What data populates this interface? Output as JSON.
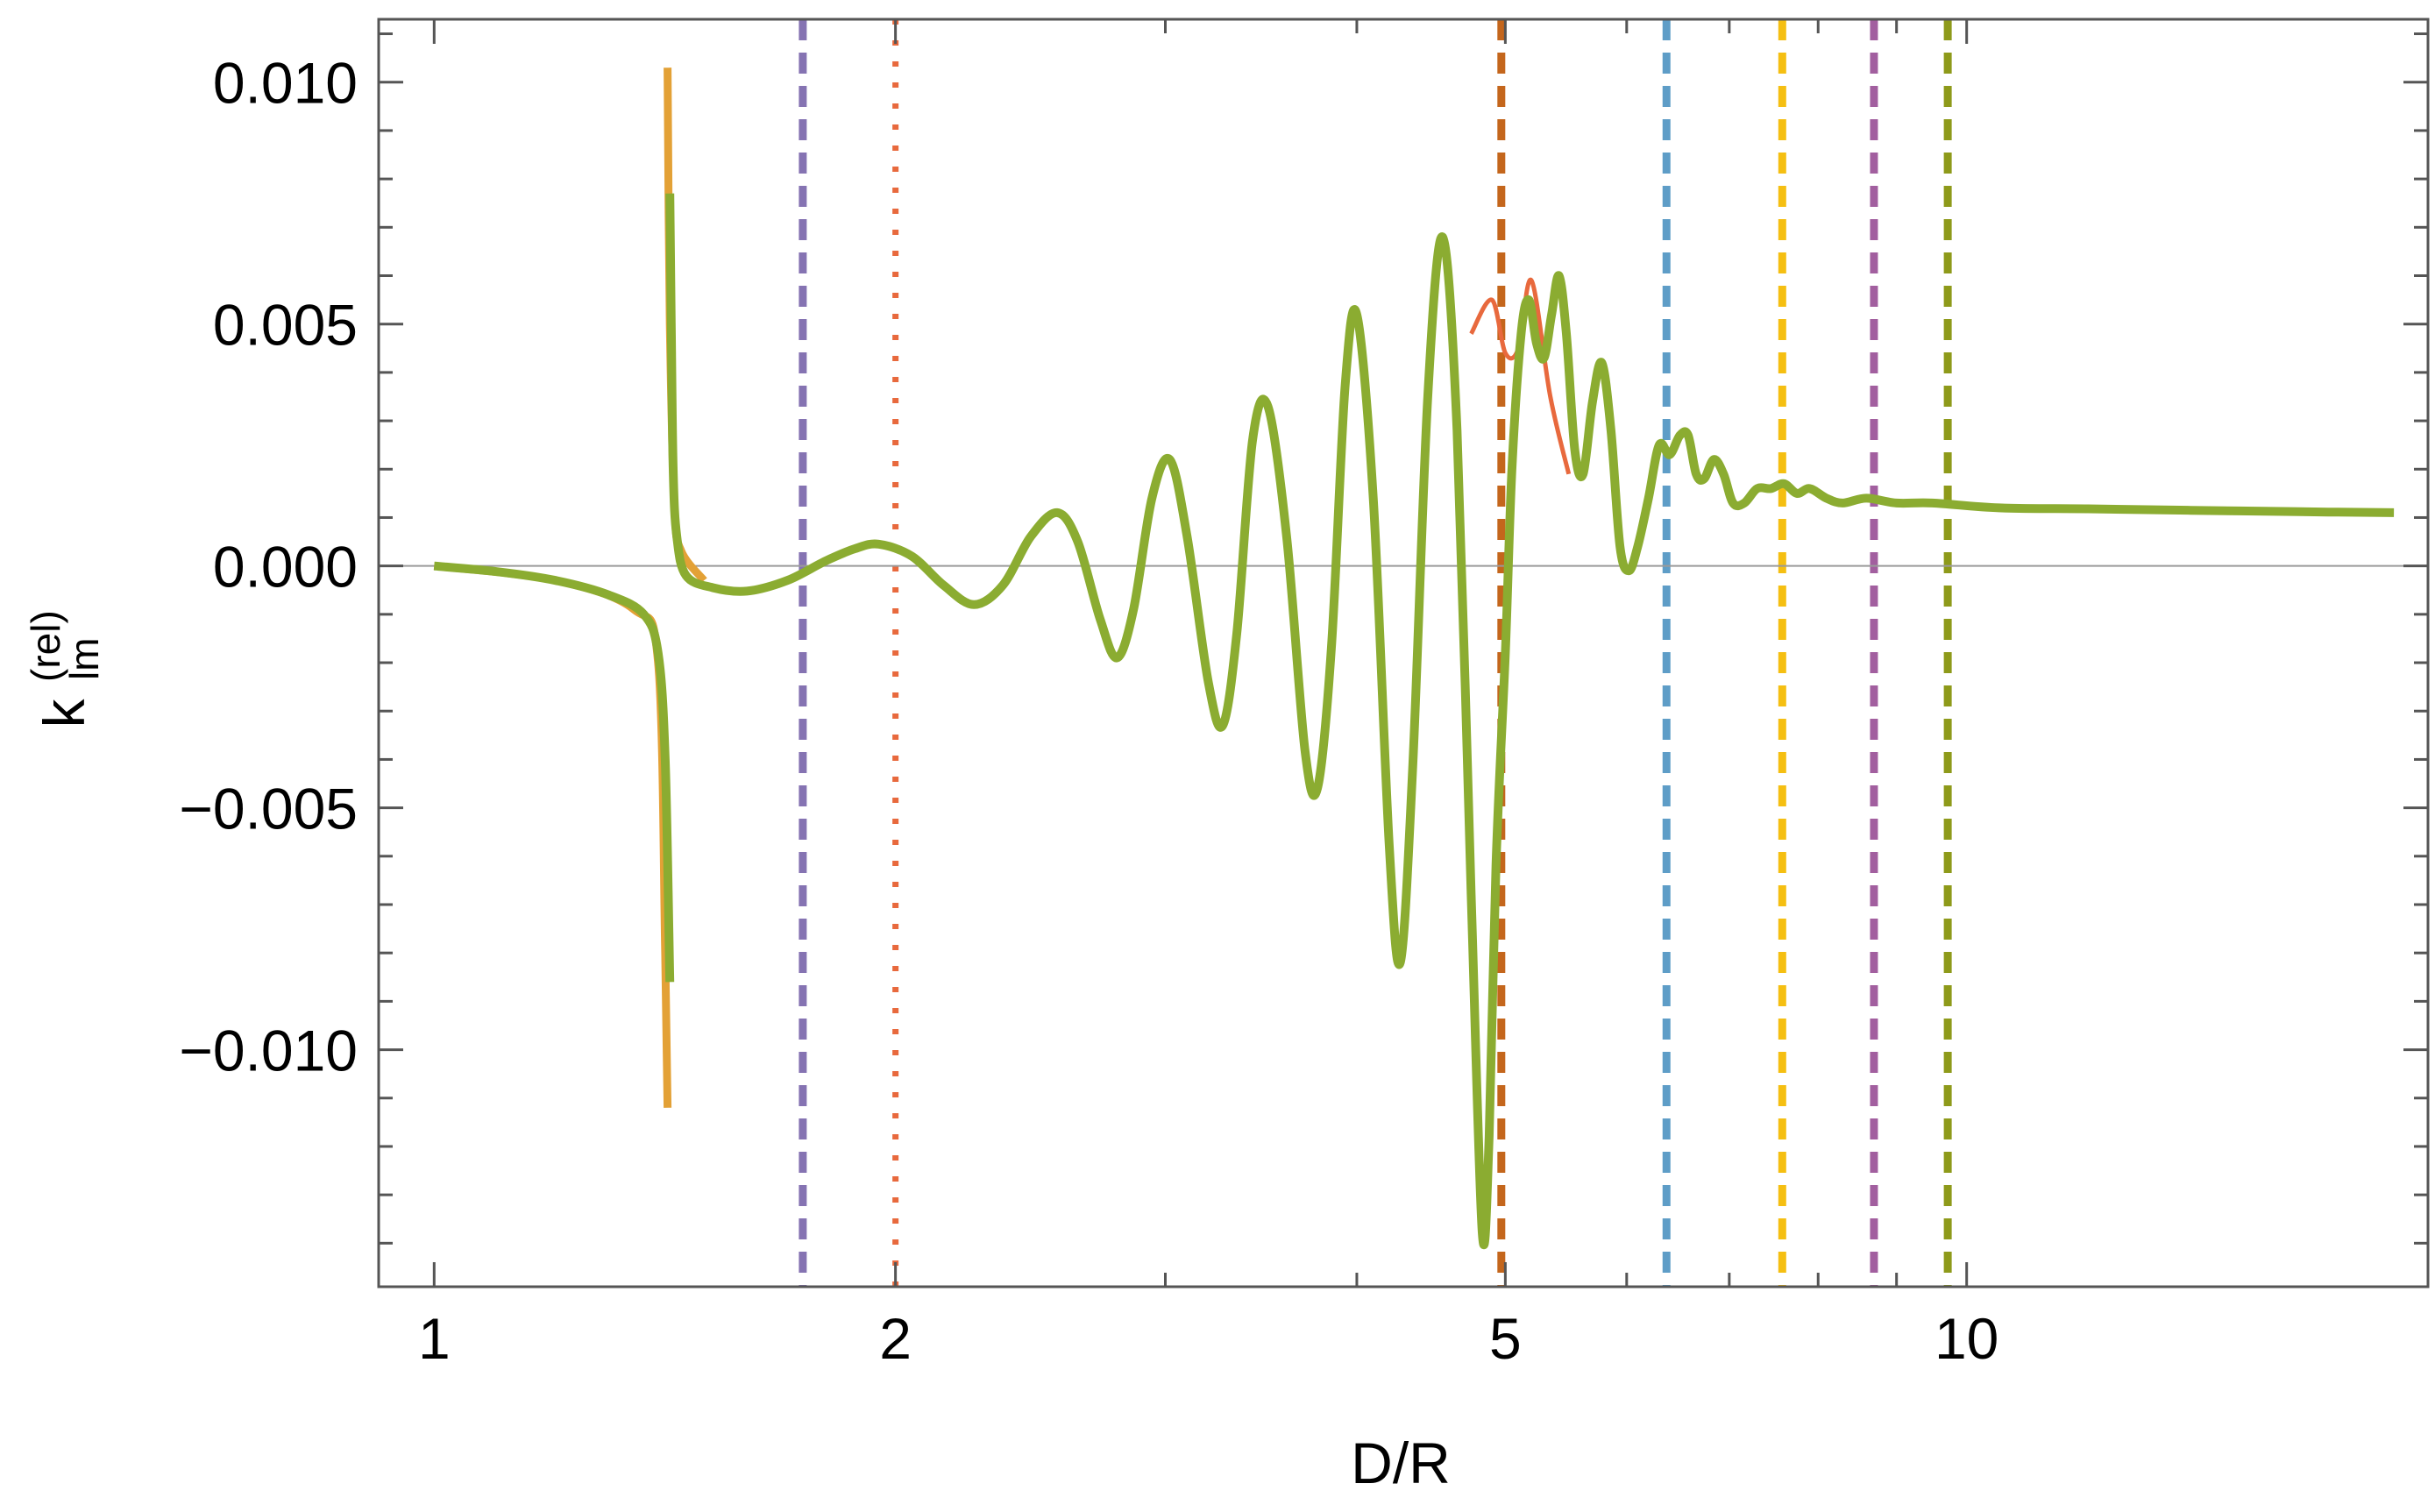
{
  "chart_data": {
    "type": "line",
    "xlabel": "D/R",
    "ylabel": {
      "base": "k",
      "superscript": "(rel)",
      "subscript": "lm"
    },
    "xscale": "log",
    "xlim": [
      0.92,
      20
    ],
    "ylim": [
      -0.0149,
      0.0113
    ],
    "x_ticks": [
      {
        "value": 1,
        "label": "1"
      },
      {
        "value": 2,
        "label": "2"
      },
      {
        "value": 5,
        "label": "5"
      },
      {
        "value": 10,
        "label": "10"
      }
    ],
    "y_ticks": [
      {
        "value": 0.01,
        "label": "0.010"
      },
      {
        "value": 0.005,
        "label": "0.005"
      },
      {
        "value": 0.0,
        "label": "0.000"
      },
      {
        "value": -0.005,
        "label": "−0.005"
      },
      {
        "value": -0.01,
        "label": "−0.010"
      }
    ],
    "grid": false,
    "zero_line": true,
    "vertical_lines": [
      {
        "x": 1.74,
        "style": "dashed",
        "color": "#8573b2"
      },
      {
        "x": 2.0,
        "style": "dotted",
        "color": "#e8693d"
      },
      {
        "x": 4.97,
        "style": "dashed",
        "color": "#c4661c"
      },
      {
        "x": 6.37,
        "style": "dashed",
        "color": "#5e9dc7"
      },
      {
        "x": 7.58,
        "style": "dashed",
        "color": "#f5bf12"
      },
      {
        "x": 8.7,
        "style": "dashed",
        "color": "#a25f9f"
      },
      {
        "x": 9.72,
        "style": "dashed",
        "color": "#8e9a1a"
      }
    ],
    "series": [
      {
        "color": "#e3a136",
        "width": 9,
        "segments": [
          [
            [
              1.0,
              0.0
            ],
            [
              1.2,
              -0.0003
            ],
            [
              1.35,
              -0.0009
            ],
            [
              1.4,
              -0.002
            ],
            [
              1.415,
              -0.008
            ],
            [
              1.42,
              -0.0112
            ]
          ],
          [
            [
              1.42,
              0.0103
            ],
            [
              1.425,
              0.005
            ],
            [
              1.435,
              0.0012
            ],
            [
              1.45,
              0.0003
            ],
            [
              1.5,
              -0.0003
            ]
          ]
        ]
      },
      {
        "color": "#e8693d",
        "width": 5,
        "segments": [
          [
            [
              4.75,
              0.0048
            ],
            [
              4.9,
              0.0055
            ],
            [
              5.0,
              0.0044
            ],
            [
              5.1,
              0.0045
            ],
            [
              5.2,
              0.0059
            ],
            [
              5.35,
              0.0035
            ],
            [
              5.5,
              0.0019
            ]
          ]
        ]
      },
      {
        "color": "#8bac31",
        "width": 10,
        "segments": [
          [
            [
              1.0,
              0.0
            ],
            [
              1.1,
              -0.00012
            ],
            [
              1.2,
              -0.0003
            ],
            [
              1.3,
              -0.0006
            ],
            [
              1.37,
              -0.001
            ],
            [
              1.4,
              -0.0018
            ],
            [
              1.415,
              -0.004
            ],
            [
              1.425,
              -0.0086
            ]
          ],
          [
            [
              1.425,
              0.0077
            ],
            [
              1.428,
              0.005
            ],
            [
              1.432,
              0.002
            ],
            [
              1.44,
              0.0006
            ],
            [
              1.46,
              -0.0002
            ],
            [
              1.52,
              -0.00045
            ],
            [
              1.6,
              -0.00052
            ],
            [
              1.7,
              -0.0003
            ],
            [
              1.8,
              0.0001
            ],
            [
              1.88,
              0.00035
            ],
            [
              1.95,
              0.00045
            ],
            [
              2.05,
              0.0002
            ],
            [
              2.15,
              -0.0004
            ],
            [
              2.25,
              -0.0008
            ],
            [
              2.35,
              -0.0004
            ],
            [
              2.45,
              0.0006
            ],
            [
              2.55,
              0.0011
            ],
            [
              2.63,
              0.0005
            ],
            [
              2.72,
              -0.0011
            ],
            [
              2.79,
              -0.0019
            ],
            [
              2.86,
              -0.0009
            ],
            [
              2.94,
              0.0014
            ],
            [
              3.02,
              0.0022
            ],
            [
              3.1,
              0.0006
            ],
            [
              3.2,
              -0.0024
            ],
            [
              3.27,
              -0.0033
            ],
            [
              3.34,
              -0.0014
            ],
            [
              3.42,
              0.0026
            ],
            [
              3.5,
              0.0033
            ],
            [
              3.6,
              0.0006
            ],
            [
              3.7,
              -0.0038
            ],
            [
              3.77,
              -0.0046
            ],
            [
              3.85,
              -0.0017
            ],
            [
              3.93,
              0.0037
            ],
            [
              4.0,
              0.0052
            ],
            [
              4.1,
              0.0014
            ],
            [
              4.2,
              -0.0058
            ],
            [
              4.27,
              -0.0082
            ],
            [
              4.35,
              -0.0042
            ],
            [
              4.45,
              0.0035
            ],
            [
              4.55,
              0.0068
            ],
            [
              4.65,
              0.0028
            ],
            [
              4.75,
              -0.0068
            ],
            [
              4.83,
              -0.0138
            ],
            [
              4.88,
              -0.0118
            ],
            [
              4.93,
              -0.0062
            ],
            [
              5.0,
              -0.0018
            ],
            [
              5.05,
              0.002
            ],
            [
              5.12,
              0.0048
            ],
            [
              5.18,
              0.0055
            ],
            [
              5.24,
              0.0046
            ],
            [
              5.3,
              0.0043
            ],
            [
              5.36,
              0.0052
            ],
            [
              5.42,
              0.006
            ],
            [
              5.48,
              0.0048
            ],
            [
              5.55,
              0.0024
            ],
            [
              5.62,
              0.0019
            ],
            [
              5.7,
              0.0034
            ],
            [
              5.78,
              0.0042
            ],
            [
              5.86,
              0.0028
            ],
            [
              5.94,
              0.0004
            ],
            [
              6.02,
              -0.0001
            ],
            [
              6.1,
              0.0004
            ],
            [
              6.2,
              0.0014
            ],
            [
              6.3,
              0.0025
            ],
            [
              6.4,
              0.0023
            ],
            [
              6.5,
              0.0027
            ],
            [
              6.58,
              0.0027
            ],
            [
              6.66,
              0.0019
            ],
            [
              6.74,
              0.0018
            ],
            [
              6.84,
              0.0022
            ],
            [
              6.94,
              0.0019
            ],
            [
              7.04,
              0.0013
            ],
            [
              7.16,
              0.0013
            ],
            [
              7.3,
              0.0016
            ],
            [
              7.45,
              0.0016
            ],
            [
              7.6,
              0.0017
            ],
            [
              7.75,
              0.0015
            ],
            [
              7.9,
              0.0016
            ],
            [
              8.1,
              0.0014
            ],
            [
              8.3,
              0.0013
            ],
            [
              8.6,
              0.0014
            ],
            [
              9.0,
              0.0013
            ],
            [
              9.5,
              0.0013
            ],
            [
              10.5,
              0.0012
            ],
            [
              12.0,
              0.00118
            ],
            [
              14.0,
              0.00115
            ],
            [
              16.5,
              0.00112
            ],
            [
              19.0,
              0.0011
            ]
          ]
        ]
      }
    ]
  }
}
